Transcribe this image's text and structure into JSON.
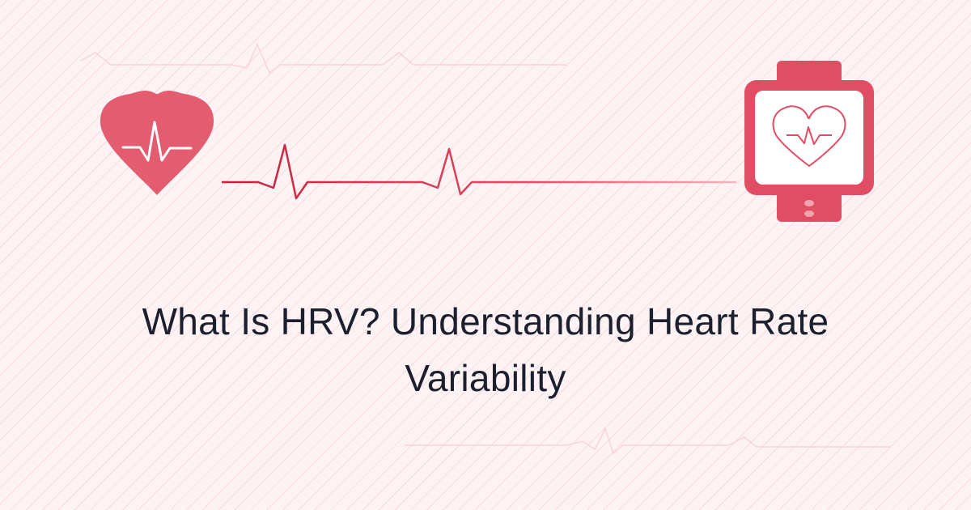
{
  "title": "What Is HRV? Understanding Heart Rate Variability",
  "colors": {
    "accent": "#e45c70",
    "line": "#d23a52",
    "background": "#fdf3f4",
    "text": "#1b1f2e"
  },
  "icons": [
    "heart-pulse-icon",
    "ecg-line",
    "smartwatch-icon"
  ]
}
